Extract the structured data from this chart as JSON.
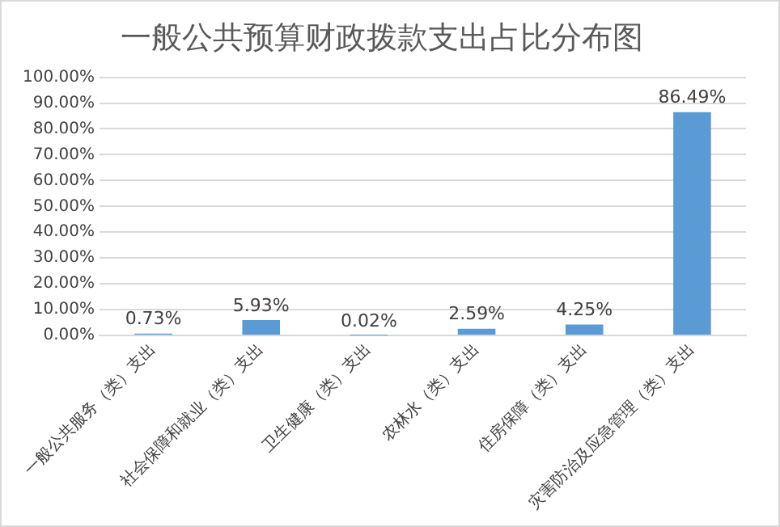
{
  "chart_data": {
    "type": "bar",
    "title": "一般公共预算财政拨款支出占比分布图",
    "categories": [
      "一般公共服务（类）支出",
      "社会保障和就业（类）支出",
      "卫生健康（类）支出",
      "农林水（类）支出",
      "住房保障（类）支出",
      "灾害防治及应急管理（类）支出"
    ],
    "values": [
      0.73,
      5.93,
      0.02,
      2.59,
      4.25,
      86.49
    ],
    "value_labels": [
      "0.73%",
      "5.93%",
      "0.02%",
      "2.59%",
      "4.25%",
      "86.49%"
    ],
    "color": "#5b9bd5",
    "ylim": [
      0,
      100
    ],
    "yticks": [
      {
        "value": 0,
        "label": "0.00%"
      },
      {
        "value": 10,
        "label": "10.00%"
      },
      {
        "value": 20,
        "label": "20.00%"
      },
      {
        "value": 30,
        "label": "30.00%"
      },
      {
        "value": 40,
        "label": "40.00%"
      },
      {
        "value": 50,
        "label": "50.00%"
      },
      {
        "value": 60,
        "label": "60.00%"
      },
      {
        "value": 70,
        "label": "70.00%"
      },
      {
        "value": 80,
        "label": "80.00%"
      },
      {
        "value": 90,
        "label": "90.00%"
      },
      {
        "value": 100,
        "label": "100.00%"
      }
    ],
    "grid": "y"
  }
}
